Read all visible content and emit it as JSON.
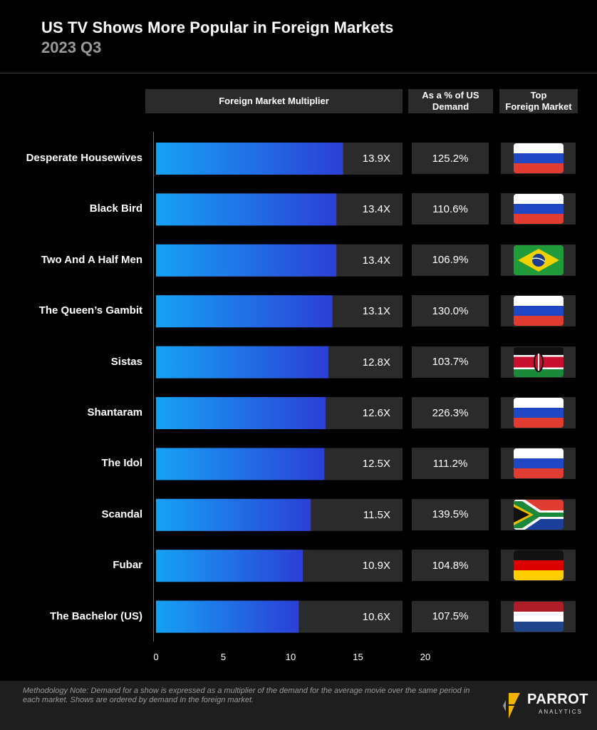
{
  "header": {
    "title": "US TV Shows More Popular in Foreign Markets",
    "subtitle": "2023 Q3"
  },
  "columns": {
    "multiplier": "Foreign Market Multiplier",
    "pct_line1": "As a % of US",
    "pct_line2": "Demand",
    "market_line1": "Top",
    "market_line2": "Foreign Market"
  },
  "chart_data": {
    "type": "bar",
    "orientation": "horizontal",
    "title": "US TV Shows More Popular in Foreign Markets",
    "subtitle": "2023 Q3",
    "xlabel": "Foreign Market Multiplier",
    "xlim": [
      0,
      20
    ],
    "xticks": [
      "0",
      "5",
      "10",
      "15",
      "20"
    ],
    "colors": {
      "bar_start": "#16a2f5",
      "bar_end": "#2b3fd6",
      "track": "#2b2b2b"
    },
    "categories": [
      "Desperate Housewives",
      "Black Bird",
      "Two And A Half Men",
      "The Queen’s Gambit",
      "Sistas",
      "Shantaram",
      "The Idol",
      "Scandal",
      "Fubar",
      "The Bachelor (US)"
    ],
    "values": [
      13.9,
      13.4,
      13.4,
      13.1,
      12.8,
      12.6,
      12.5,
      11.5,
      10.9,
      10.6
    ],
    "value_labels": [
      "13.9X",
      "13.4X",
      "13.4X",
      "13.1X",
      "12.8X",
      "12.6X",
      "12.5X",
      "11.5X",
      "10.9X",
      "10.6X"
    ],
    "pct_of_us_demand": [
      "125.2%",
      "110.6%",
      "106.9%",
      "130.0%",
      "103.7%",
      "226.3%",
      "111.2%",
      "139.5%",
      "104.8%",
      "107.5%"
    ],
    "top_foreign_market_flag": [
      "russia",
      "russia",
      "brazil",
      "russia",
      "kenya",
      "russia",
      "russia",
      "south-africa",
      "germany",
      "netherlands"
    ]
  },
  "footer": {
    "note_label": "Methodology Note:",
    "note_text": " Demand for a show is expressed as a multiplier of the demand for the average movie over the same period in each market.  Shows are ordered by demand In the foreign market.",
    "logo_word": "PARROT",
    "logo_sub": "ANALYTICS"
  }
}
